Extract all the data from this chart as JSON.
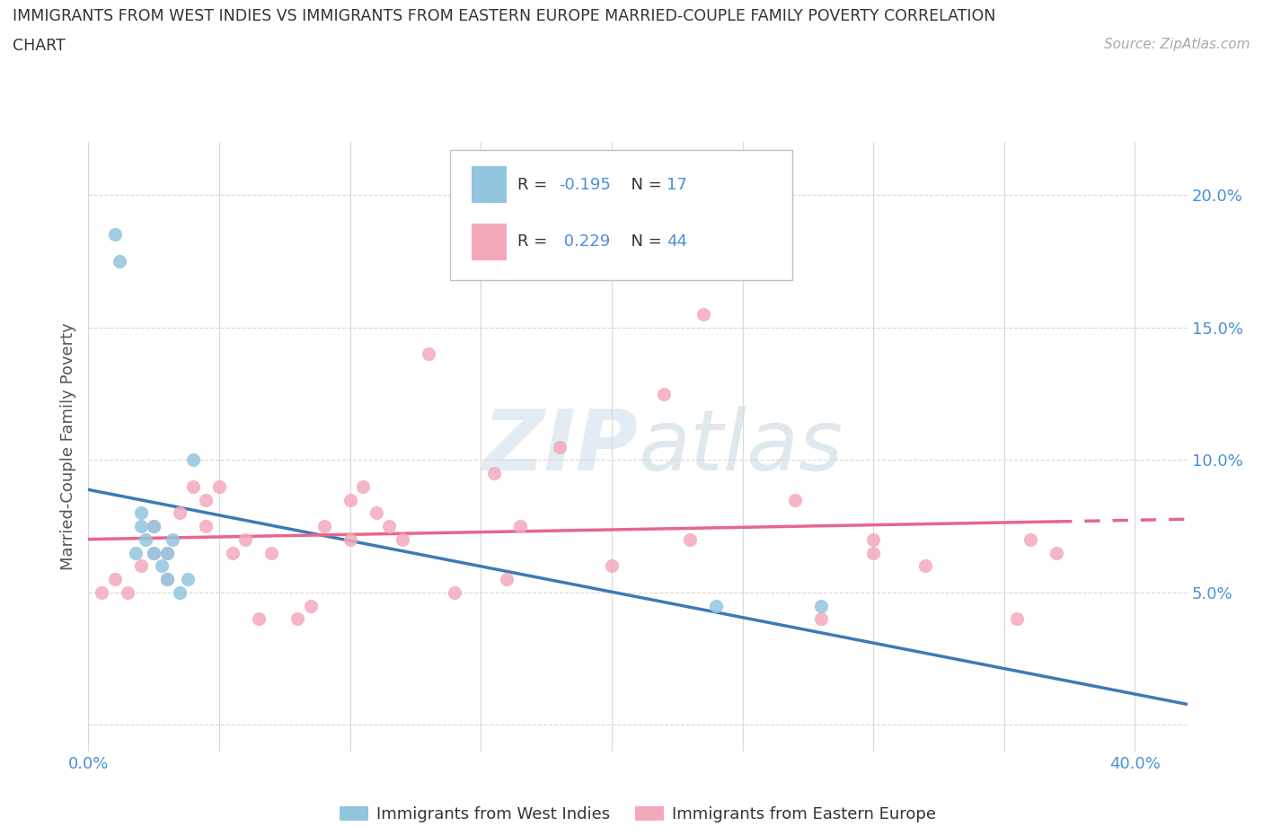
{
  "title_line1": "IMMIGRANTS FROM WEST INDIES VS IMMIGRANTS FROM EASTERN EUROPE MARRIED-COUPLE FAMILY POVERTY CORRELATION",
  "title_line2": "CHART",
  "source_text": "Source: ZipAtlas.com",
  "ylabel": "Married-Couple Family Poverty",
  "xlim": [
    0.0,
    0.42
  ],
  "ylim": [
    -0.01,
    0.22
  ],
  "x_ticks": [
    0.0,
    0.05,
    0.1,
    0.15,
    0.2,
    0.25,
    0.3,
    0.35,
    0.4
  ],
  "y_ticks": [
    0.0,
    0.05,
    0.1,
    0.15,
    0.2
  ],
  "blue_color": "#92c5de",
  "pink_color": "#f4a9bb",
  "trend_blue": "#3d7ab5",
  "trend_pink": "#e8668a",
  "watermark_color": "#d0dce8",
  "blue_scatter_x": [
    0.01,
    0.012,
    0.018,
    0.02,
    0.02,
    0.022,
    0.025,
    0.025,
    0.028,
    0.03,
    0.03,
    0.032,
    0.035,
    0.038,
    0.04,
    0.24,
    0.28
  ],
  "blue_scatter_y": [
    0.185,
    0.175,
    0.065,
    0.075,
    0.08,
    0.07,
    0.065,
    0.075,
    0.06,
    0.055,
    0.065,
    0.07,
    0.05,
    0.055,
    0.1,
    0.045,
    0.045
  ],
  "pink_scatter_x": [
    0.005,
    0.01,
    0.015,
    0.02,
    0.025,
    0.025,
    0.03,
    0.03,
    0.035,
    0.04,
    0.045,
    0.045,
    0.05,
    0.055,
    0.06,
    0.065,
    0.07,
    0.08,
    0.085,
    0.09,
    0.1,
    0.1,
    0.105,
    0.11,
    0.115,
    0.12,
    0.13,
    0.14,
    0.155,
    0.16,
    0.165,
    0.18,
    0.2,
    0.22,
    0.23,
    0.235,
    0.27,
    0.28,
    0.3,
    0.3,
    0.32,
    0.355,
    0.36,
    0.37
  ],
  "pink_scatter_y": [
    0.05,
    0.055,
    0.05,
    0.06,
    0.065,
    0.075,
    0.055,
    0.065,
    0.08,
    0.09,
    0.075,
    0.085,
    0.09,
    0.065,
    0.07,
    0.04,
    0.065,
    0.04,
    0.045,
    0.075,
    0.07,
    0.085,
    0.09,
    0.08,
    0.075,
    0.07,
    0.14,
    0.05,
    0.095,
    0.055,
    0.075,
    0.105,
    0.06,
    0.125,
    0.07,
    0.155,
    0.085,
    0.04,
    0.065,
    0.07,
    0.06,
    0.04,
    0.07,
    0.065
  ],
  "background_color": "#ffffff",
  "grid_color": "#d8d8d8"
}
